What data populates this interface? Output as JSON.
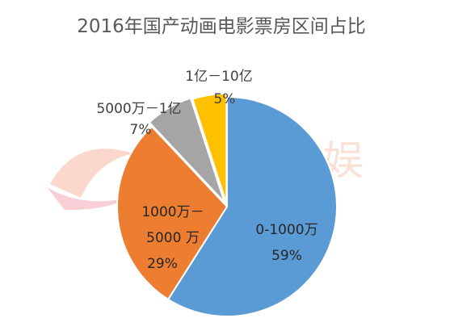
{
  "chart_data": {
    "type": "pie",
    "title": "2016年国产动画电影票房区间占比",
    "slices": [
      {
        "label": "0-1000万",
        "value": 59,
        "value_text": "59%",
        "color": "#5b9bd5",
        "text_color": "#262626"
      },
      {
        "label": "1000万－5000 万",
        "value": 29,
        "value_text": "29%",
        "color": "#ed7d31",
        "text_color": "#262626"
      },
      {
        "label": "5000万－1亿",
        "value": 7,
        "value_text": "7%",
        "color": "#a5a5a5",
        "text_color": "#404040"
      },
      {
        "label": "1亿－10亿",
        "value": 5,
        "value_text": "5%",
        "color": "#ffc000",
        "text_color": "#404040"
      }
    ]
  },
  "watermark": {
    "text": "三文娱",
    "icon": "logo-icon"
  }
}
